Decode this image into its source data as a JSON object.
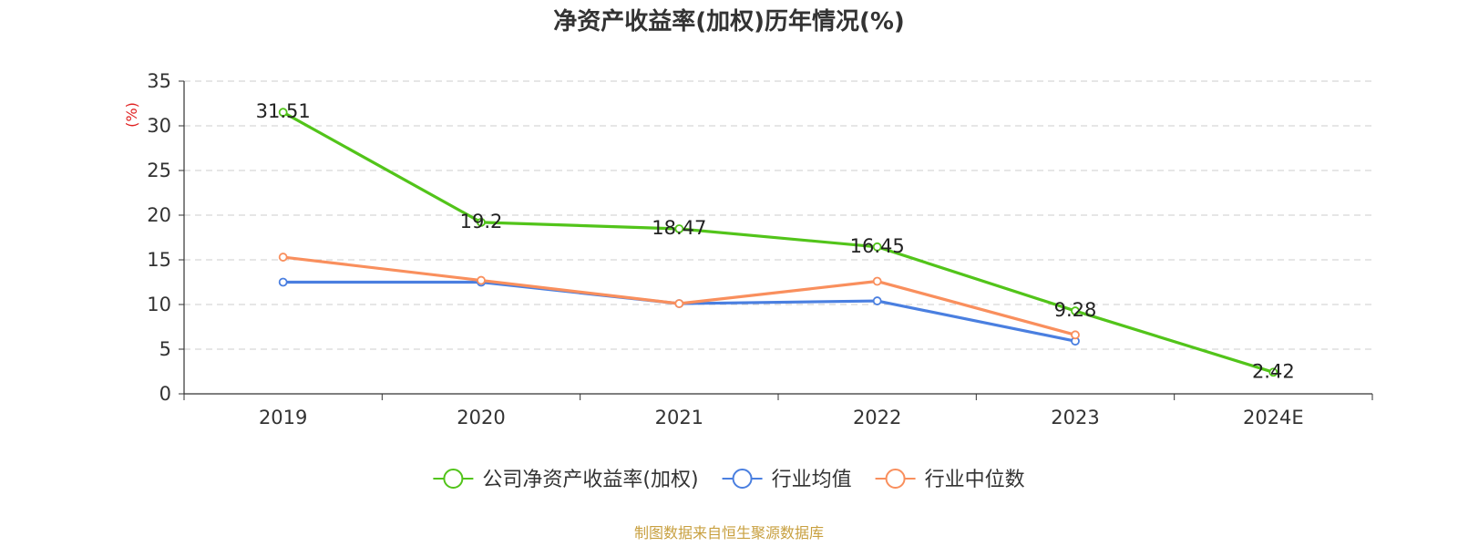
{
  "chart_data": {
    "type": "line",
    "title": "净资产收益率(加权)历年情况(%)",
    "ylabel": "(%)",
    "ylim": [
      0,
      35
    ],
    "yticks": [
      0,
      5,
      10,
      15,
      20,
      25,
      30,
      35
    ],
    "categories": [
      "2019",
      "2020",
      "2021",
      "2022",
      "2023",
      "2024E"
    ],
    "series": [
      {
        "name": "公司净资产收益率(加权)",
        "color": "#52c41a",
        "values": [
          31.51,
          19.2,
          18.47,
          16.45,
          9.28,
          2.42
        ],
        "labels": [
          "31.51",
          "19.2",
          "18.47",
          "16.45",
          "9.28",
          "2.42"
        ]
      },
      {
        "name": "行业均值",
        "color": "#4a7fe0",
        "values": [
          12.5,
          12.5,
          10.1,
          10.4,
          5.9,
          null
        ],
        "labels": []
      },
      {
        "name": "行业中位数",
        "color": "#f98f5d",
        "values": [
          15.3,
          12.7,
          10.1,
          12.6,
          6.6,
          null
        ],
        "labels": []
      }
    ],
    "grid": true,
    "legend_position": "bottom-center"
  },
  "ylabel_color": "#e02020",
  "source": {
    "text": "制图数据来自恒生聚源数据库",
    "color": "#c8a040"
  }
}
